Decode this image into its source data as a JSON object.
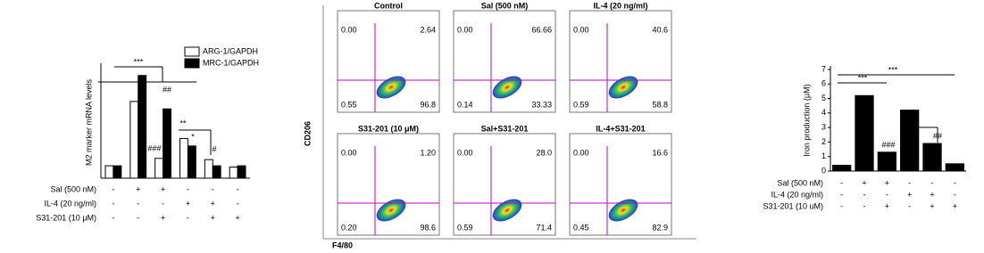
{
  "chart_data": [
    {
      "type": "bar",
      "y_label": "M2 marker mRNA levels",
      "ylim": [
        0,
        9
      ],
      "categories": [
        null,
        null,
        null,
        null,
        null,
        null
      ],
      "series": [
        {
          "name": "ARG-1/GAPDH",
          "color": "#ffffff",
          "values": [
            1.0,
            6.2,
            1.6,
            3.2,
            1.5,
            0.9
          ]
        },
        {
          "name": "MRC-1/GAPDH",
          "color": "#000000",
          "values": [
            1.0,
            8.3,
            5.6,
            2.6,
            1.0,
            1.0
          ]
        }
      ],
      "conditions": [
        {
          "label": "Sal (500 nM)",
          "marks": [
            "-",
            "+",
            "+",
            "-",
            "-",
            "-"
          ]
        },
        {
          "label": "IL-4 (20 ng/ml)",
          "marks": [
            "-",
            "-",
            "-",
            "+",
            "+",
            "-"
          ]
        },
        {
          "label": "S31-201 (10 μM)",
          "marks": [
            "-",
            "-",
            "+",
            "-",
            "+",
            "+"
          ]
        }
      ],
      "annotations": [
        "***",
        "##",
        "###",
        "**",
        "*",
        "#"
      ]
    },
    {
      "type": "bar",
      "y_label": "Iron production (μM)",
      "ylim": [
        0,
        7
      ],
      "yticks": [
        0,
        1,
        2,
        3,
        4,
        5,
        6,
        7
      ],
      "categories": [
        null,
        null,
        null,
        null,
        null,
        null
      ],
      "values": [
        0.4,
        5.2,
        1.3,
        4.2,
        1.9,
        0.5
      ],
      "color": "#000000",
      "conditions": [
        {
          "label": "Sal (500 nM)",
          "marks": [
            "-",
            "+",
            "+",
            "-",
            "-",
            "-"
          ]
        },
        {
          "label": "IL-4 (20 ng/ml)",
          "marks": [
            "-",
            "-",
            "-",
            "+",
            "+",
            "-"
          ]
        },
        {
          "label": "S31-201 (10 uM)",
          "marks": [
            "-",
            "-",
            "+",
            "-",
            "+",
            "+"
          ]
        }
      ],
      "annotations": [
        "***",
        "***",
        "###",
        "##"
      ]
    }
  ],
  "flow_panel": {
    "y_label": "CD206",
    "x_label": "F4/80",
    "plots": [
      {
        "title": "Control",
        "quadrants": [
          "0.00",
          "2.64",
          "0.55",
          "96.8"
        ]
      },
      {
        "title": "Sal (500 nM)",
        "quadrants": [
          "0.00",
          "66.66",
          "0.14",
          "33.33"
        ]
      },
      {
        "title": "IL-4 (20 ng/ml)",
        "quadrants": [
          "0.00",
          "40.6",
          "0.59",
          "58.8"
        ]
      },
      {
        "title": "S31-201 (10 μM)",
        "quadrants": [
          "0.00",
          "1.20",
          "0.20",
          "98.6"
        ]
      },
      {
        "title": "Sal+S31-201",
        "quadrants": [
          "0.00",
          "28.0",
          "0.59",
          "71.4"
        ]
      },
      {
        "title": "IL-4+S31-201",
        "quadrants": [
          "0.00",
          "16.6",
          "0.45",
          "82.9"
        ]
      }
    ]
  }
}
